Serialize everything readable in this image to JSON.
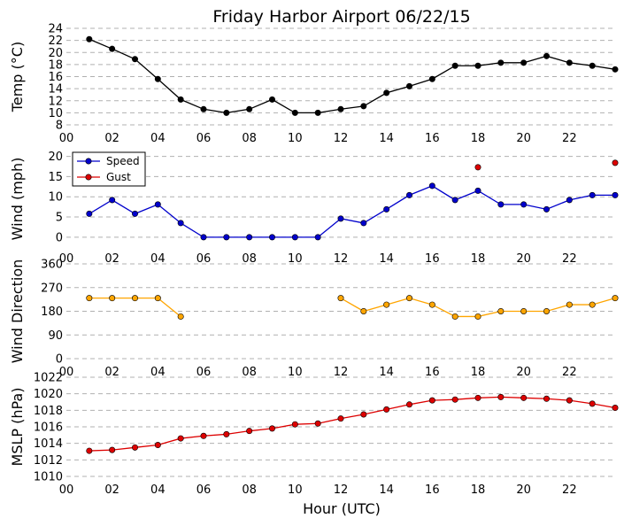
{
  "chart_data": {
    "title": "Friday Harbor Airport 06/22/15",
    "xlabel": "Hour (UTC)",
    "x_ticks": [
      "00",
      "02",
      "04",
      "06",
      "08",
      "10",
      "12",
      "14",
      "16",
      "18",
      "20",
      "22"
    ],
    "x_range": [
      0,
      24
    ],
    "panels": [
      {
        "type": "line",
        "ylabel": "Temp (°C)",
        "ylim": [
          8,
          24
        ],
        "y_ticks": [
          8,
          10,
          12,
          14,
          16,
          18,
          20,
          22,
          24
        ],
        "grid": true,
        "series": [
          {
            "color": "#000000",
            "line": true,
            "x": [
              1,
              2,
              3,
              4,
              5,
              6,
              7,
              8,
              9,
              10,
              11,
              12,
              13,
              14,
              15,
              16,
              17,
              18,
              19,
              20,
              21,
              22,
              23,
              24
            ],
            "y": [
              22.2,
              20.6,
              18.9,
              15.6,
              12.2,
              10.6,
              10.0,
              10.6,
              12.2,
              10.0,
              10.0,
              10.6,
              11.1,
              13.3,
              14.4,
              15.6,
              17.8,
              17.8,
              18.3,
              18.3,
              19.4,
              18.3,
              17.8,
              17.2
            ]
          }
        ]
      },
      {
        "type": "line",
        "ylabel": "Wind (mph)",
        "ylim": [
          -2,
          21
        ],
        "y_ticks": [
          0,
          5,
          10,
          15,
          20
        ],
        "grid": true,
        "legend": {
          "placement": "top-left"
        },
        "series": [
          {
            "name": "Speed",
            "color": "#0000cc",
            "line": true,
            "x": [
              1,
              2,
              3,
              4,
              5,
              6,
              7,
              8,
              9,
              10,
              11,
              12,
              13,
              14,
              15,
              16,
              17,
              18,
              19,
              20,
              21,
              22,
              23,
              24
            ],
            "y": [
              5.8,
              9.2,
              5.8,
              8.1,
              3.5,
              0,
              0,
              0,
              0,
              0,
              0,
              4.6,
              3.5,
              6.9,
              10.4,
              12.7,
              9.2,
              11.5,
              8.1,
              8.1,
              6.9,
              9.2,
              10.4,
              10.4
            ]
          },
          {
            "name": "Gust",
            "color": "#dd0000",
            "line": false,
            "x": [
              18,
              24
            ],
            "y": [
              17.3,
              18.4
            ]
          }
        ]
      },
      {
        "type": "line",
        "ylabel": "Wind Direction",
        "ylim": [
          0,
          360
        ],
        "y_ticks": [
          0,
          90,
          180,
          270,
          360
        ],
        "grid": true,
        "series": [
          {
            "color": "#ffa500",
            "line": true,
            "segments": [
              {
                "x": [
                  1,
                  2,
                  3,
                  4,
                  5
                ],
                "y": [
                  230,
                  230,
                  230,
                  230,
                  160
                ]
              },
              {
                "x": [
                  12,
                  13,
                  14,
                  15,
                  16,
                  17,
                  18,
                  19,
                  20,
                  21,
                  22,
                  23,
                  24
                ],
                "y": [
                  230,
                  180,
                  205,
                  230,
                  205,
                  160,
                  160,
                  180,
                  180,
                  180,
                  205,
                  205,
                  230
                ]
              }
            ]
          }
        ]
      },
      {
        "type": "line",
        "ylabel": "MSLP (hPa)",
        "ylim": [
          1010,
          1022
        ],
        "y_ticks": [
          1010,
          1012,
          1014,
          1016,
          1018,
          1020,
          1022
        ],
        "grid": true,
        "series": [
          {
            "color": "#dd0000",
            "line": true,
            "x": [
              1,
              2,
              3,
              4,
              5,
              6,
              7,
              8,
              9,
              10,
              11,
              12,
              13,
              14,
              15,
              16,
              17,
              18,
              19,
              20,
              21,
              22,
              23,
              24
            ],
            "y": [
              1013.1,
              1013.2,
              1013.5,
              1013.8,
              1014.6,
              1014.9,
              1015.1,
              1015.5,
              1015.8,
              1016.3,
              1016.4,
              1017.0,
              1017.5,
              1018.1,
              1018.7,
              1019.2,
              1019.3,
              1019.5,
              1019.6,
              1019.5,
              1019.4,
              1019.2,
              1018.8,
              1018.3
            ]
          }
        ]
      }
    ]
  }
}
